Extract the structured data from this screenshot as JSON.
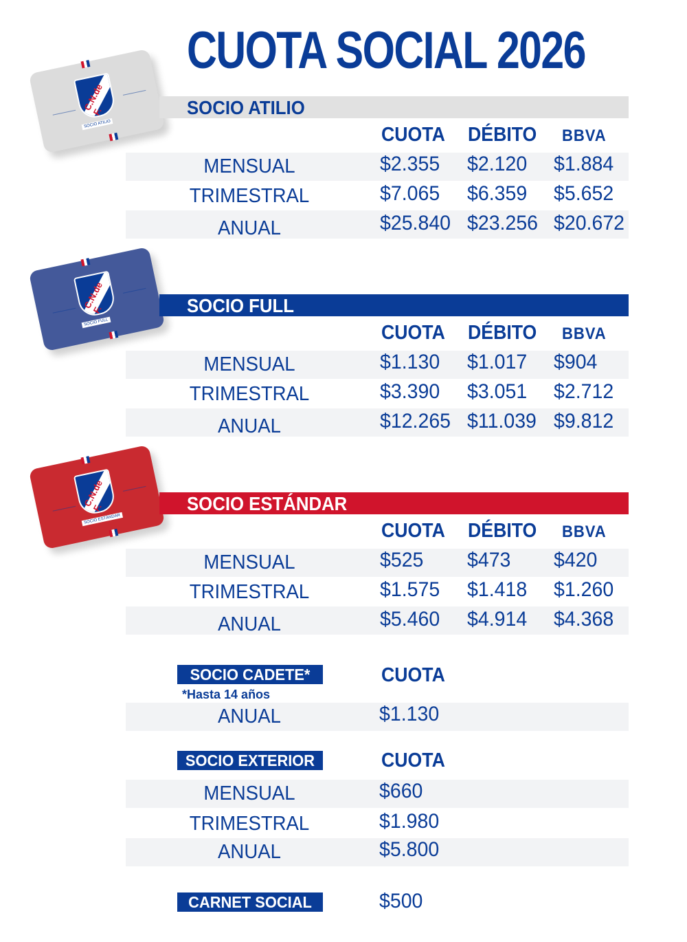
{
  "title": "CUOTA SOCIAL 2026",
  "colors": {
    "blue": "#0a3c97",
    "red": "#d0142c",
    "gray_bar": "#e1e1e1",
    "row_shade": "#f2f3f5"
  },
  "column_headers": {
    "cuota": "CUOTA",
    "debito": "DÉBITO",
    "bbva": "BBVA"
  },
  "tiers": [
    {
      "name": "SOCIO ATILIO",
      "bar_color": "#e1e1e1",
      "bar_text_color": "#0a3c97",
      "card_color": "#dcdcdc",
      "card_tag": "SOCIO ATILIO",
      "rows": [
        {
          "label": "MENSUAL",
          "cuota": "$2.355",
          "debito": "$2.120",
          "bbva": "$1.884"
        },
        {
          "label": "TRIMESTRAL",
          "cuota": "$7.065",
          "debito": "$6.359",
          "bbva": "$5.652"
        },
        {
          "label": "ANUAL",
          "cuota": "$25.840",
          "debito": "$23.256",
          "bbva": "$20.672"
        }
      ]
    },
    {
      "name": "SOCIO FULL",
      "bar_color": "#0a3c97",
      "bar_text_color": "#ffffff",
      "card_color": "#44599a",
      "card_tag": "SOCIO FULL",
      "rows": [
        {
          "label": "MENSUAL",
          "cuota": "$1.130",
          "debito": "$1.017",
          "bbva": "$904"
        },
        {
          "label": "TRIMESTRAL",
          "cuota": "$3.390",
          "debito": "$3.051",
          "bbva": "$2.712"
        },
        {
          "label": "ANUAL",
          "cuota": "$12.265",
          "debito": "$11.039",
          "bbva": "$9.812"
        }
      ]
    },
    {
      "name": "SOCIO ESTÁNDAR",
      "bar_color": "#d0142c",
      "bar_text_color": "#ffffff",
      "card_color": "#c92a30",
      "card_tag": "SOCIO ESTÁNDAR",
      "rows": [
        {
          "label": "MENSUAL",
          "cuota": "$525",
          "debito": "$473",
          "bbva": "$420"
        },
        {
          "label": "TRIMESTRAL",
          "cuota": "$1.575",
          "debito": "$1.418",
          "bbva": "$1.260"
        },
        {
          "label": "ANUAL",
          "cuota": "$5.460",
          "debito": "$4.914",
          "bbva": "$4.368"
        }
      ]
    }
  ],
  "cadete": {
    "name": "SOCIO CADETE*",
    "note": "*Hasta 14 años",
    "header": "CUOTA",
    "rows": [
      {
        "label": "ANUAL",
        "cuota": "$1.130"
      }
    ]
  },
  "exterior": {
    "name": "SOCIO EXTERIOR",
    "header": "CUOTA",
    "rows": [
      {
        "label": "MENSUAL",
        "cuota": "$660"
      },
      {
        "label": "TRIMESTRAL",
        "cuota": "$1.980"
      },
      {
        "label": "ANUAL",
        "cuota": "$5.800"
      }
    ]
  },
  "carnet": {
    "name": "CARNET SOCIAL",
    "price": "$500"
  },
  "card_logo": "C.N.de F."
}
